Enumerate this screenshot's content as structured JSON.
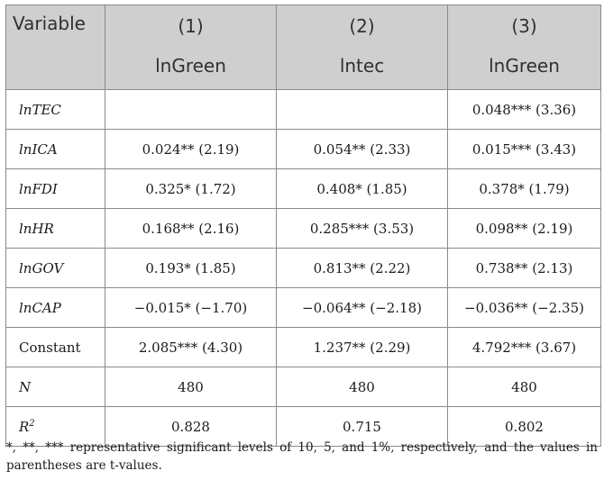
{
  "header": {
    "variable": "Variable",
    "columns": [
      {
        "num": "(1)",
        "dep": "lnGreen"
      },
      {
        "num": "(2)",
        "dep": "lntec"
      },
      {
        "num": "(3)",
        "dep": "lnGreen"
      }
    ]
  },
  "rows": [
    {
      "label": "lnTEC",
      "c1": "",
      "c2": "",
      "c3": "0.048*** (3.36)"
    },
    {
      "label": "lnICA",
      "c1": "0.024** (2.19)",
      "c2": "0.054** (2.33)",
      "c3": "0.015*** (3.43)"
    },
    {
      "label": "lnFDI",
      "c1": "0.325* (1.72)",
      "c2": "0.408* (1.85)",
      "c3": "0.378* (1.79)"
    },
    {
      "label": "lnHR",
      "c1": "0.168** (2.16)",
      "c2": "0.285*** (3.53)",
      "c3": "0.098** (2.19)"
    },
    {
      "label": "lnGOV",
      "c1": "0.193* (1.85)",
      "c2": "0.813** (2.22)",
      "c3": "0.738** (2.13)"
    },
    {
      "label": "lnCAP",
      "c1": "−0.015* (−1.70)",
      "c2": "−0.064** (−2.18)",
      "c3": "−0.036** (−2.35)"
    },
    {
      "label": "Constant",
      "c1": "2.085*** (4.30)",
      "c2": "1.237** (2.29)",
      "c3": "4.792*** (3.67)"
    },
    {
      "label": "N",
      "c1": "480",
      "c2": "480",
      "c3": "480"
    }
  ],
  "r2": {
    "label": "R",
    "sup": "2",
    "c1": "0.828",
    "c2": "0.715",
    "c3": "0.802"
  },
  "note": "*, **, *** representative significant levels of 10, 5, and 1%, respectively, and the values in parentheses are t-values."
}
